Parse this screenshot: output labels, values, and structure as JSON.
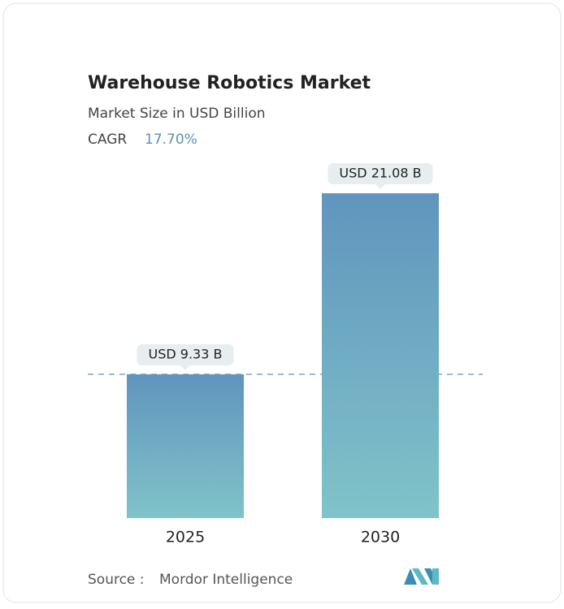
{
  "chart_data": {
    "type": "bar",
    "title": "Warehouse Robotics Market",
    "subtitle": "Market Size in USD Billion",
    "cagr_label": "CAGR",
    "cagr": "17.70%",
    "categories": [
      "2025",
      "2030"
    ],
    "values": [
      9.33,
      21.08
    ],
    "value_labels": [
      "USD 9.33 B",
      "USD 21.08 B"
    ],
    "source_label": "Source :",
    "source": "Mordor Intelligence"
  }
}
